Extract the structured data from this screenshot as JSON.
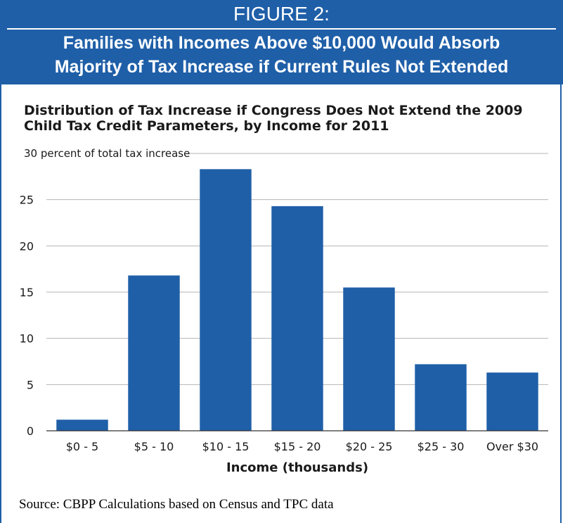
{
  "figure": {
    "label": "FIGURE 2:",
    "headline_line1": "Families with Incomes Above $10,000 Would Absorb",
    "headline_line2": "Majority of Tax Increase if Current Rules Not Extended"
  },
  "chart_data": {
    "type": "bar",
    "title": "Distribution of Tax Increase if Congress Does Not Extend the 2009 Child Tax Credit Parameters, by Income for 2011",
    "title_line1": "Distribution of Tax Increase if Congress Does Not Extend the 2009",
    "title_line2": "Child Tax Credit Parameters, by Income for 2011",
    "ylabel": "30 percent of total tax increase",
    "xlabel": "Income (thousands)",
    "categories": [
      "$0 - 5",
      "$5 - 10",
      "$10 - 15",
      "$15 - 20",
      "$20 - 25",
      "$25 - 30",
      "Over $30"
    ],
    "values": [
      1.2,
      16.8,
      28.3,
      24.3,
      15.5,
      7.2,
      6.3
    ],
    "yticks": [
      0,
      5,
      10,
      15,
      20,
      25,
      30
    ],
    "ytick_labels": [
      "0",
      "5",
      "10",
      "15",
      "20",
      "25",
      "30"
    ],
    "ylim": [
      0,
      30
    ],
    "grid": true,
    "bar_color": "#1f5fa8"
  },
  "source": "Source: CBPP Calculations based on Census and TPC data",
  "colors": {
    "accent": "#1f5fa8"
  }
}
